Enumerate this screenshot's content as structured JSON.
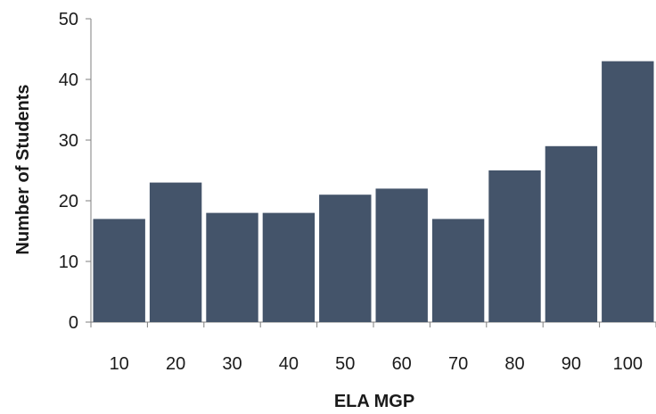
{
  "chart_data": {
    "type": "bar",
    "title": "",
    "xlabel": "ELA MGP",
    "ylabel": "Number of Students",
    "categories": [
      "10",
      "20",
      "30",
      "40",
      "50",
      "60",
      "70",
      "80",
      "90",
      "100"
    ],
    "values": [
      17,
      23,
      18,
      18,
      21,
      22,
      17,
      25,
      29,
      43
    ],
    "ylim": [
      0,
      50
    ],
    "yticks": [
      "0",
      "10",
      "20",
      "30",
      "40",
      "50"
    ],
    "grid": false,
    "legend": "none",
    "bar_color": "#44546a"
  }
}
